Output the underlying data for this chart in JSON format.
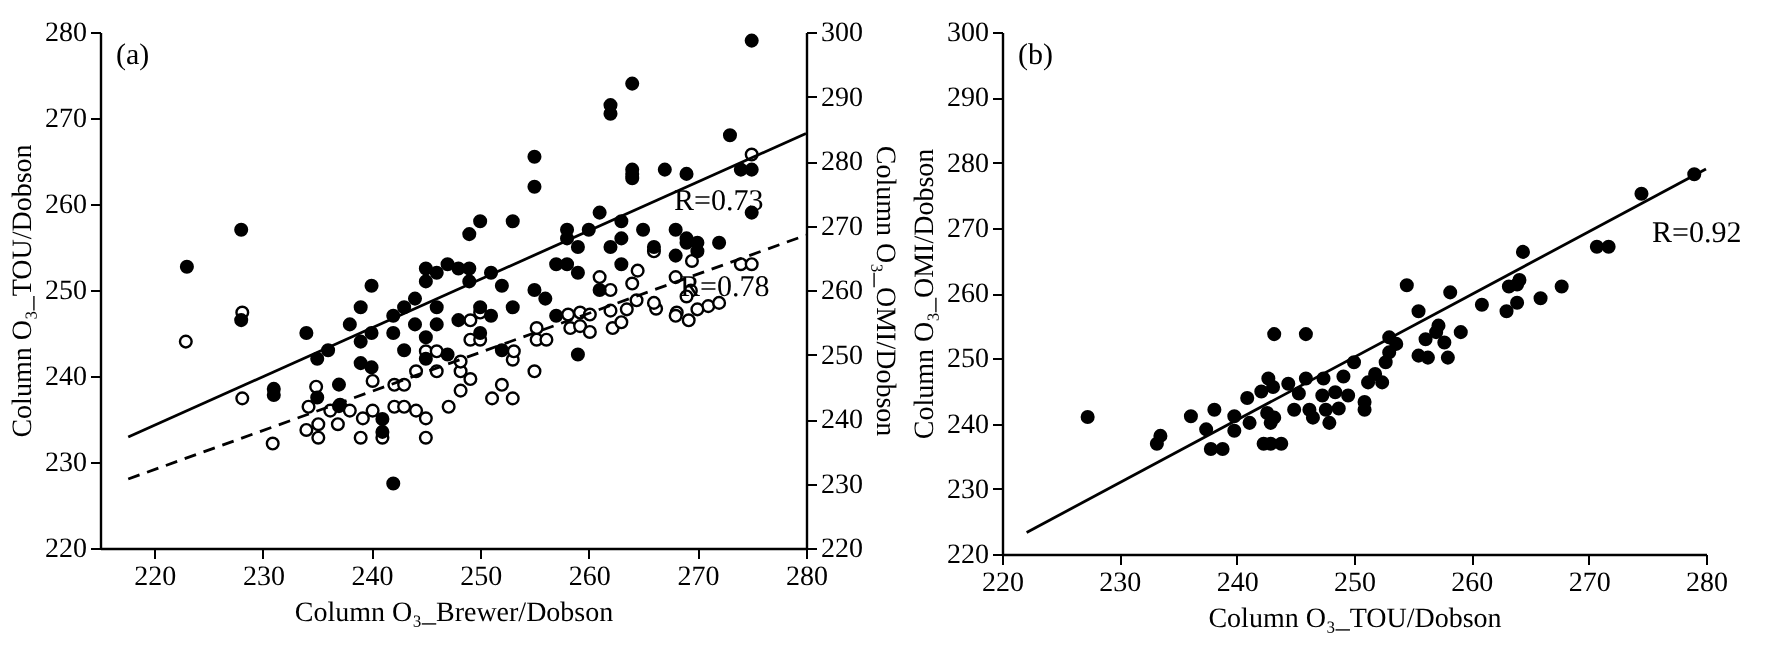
{
  "chart_data": [
    {
      "type": "scatter",
      "title": "(a)",
      "xlabel": "Column O₃_Brewer/Dobson",
      "ylabel": "Column O₃_TOU/Dobson",
      "y2label": "Column O₃_OMI/Dobson",
      "xlim": [
        215,
        280
      ],
      "xticks": [
        220,
        230,
        240,
        250,
        260,
        270,
        280
      ],
      "ylim": [
        220,
        280
      ],
      "yticks": [
        220,
        230,
        240,
        250,
        260,
        270,
        280
      ],
      "y2lim": [
        220,
        300
      ],
      "y2ticks": [
        220,
        230,
        240,
        250,
        260,
        270,
        280,
        290,
        300
      ],
      "marker": "circle",
      "series": [
        {
          "color": "#000000",
          "x": [
            223,
            228,
            228,
            231,
            231,
            234,
            235,
            235,
            236,
            237,
            237,
            238,
            239,
            239,
            239,
            240,
            240,
            240,
            241,
            241,
            242,
            242,
            242,
            243,
            243,
            244,
            244,
            245,
            245,
            245,
            245,
            246,
            246,
            247,
            248,
            248,
            249,
            249,
            249,
            250,
            250,
            251,
            252,
            252,
            253,
            253,
            255,
            255,
            255,
            256,
            257,
            258,
            258,
            259,
            259,
            259,
            260,
            261,
            261,
            262,
            262,
            263,
            263,
            264,
            264,
            264,
            265,
            266,
            267,
            268,
            268,
            269,
            269,
            269,
            270,
            272,
            273,
            274,
            275,
            275,
            275,
            270,
            262,
            263,
            258,
            257,
            251,
            250,
            247,
            246
          ],
          "values": [
            252.7,
            257,
            246.5,
            238.5,
            237.8,
            245,
            242,
            237.5,
            243,
            239,
            236.5,
            246,
            248,
            244,
            241.5,
            250.5,
            245,
            241,
            235,
            233.5,
            247,
            227.5,
            245,
            248,
            243,
            249,
            246,
            252.5,
            251,
            244.5,
            242,
            252,
            248,
            242.5,
            252.5,
            246.5,
            256.5,
            252.5,
            251,
            248,
            245,
            247,
            250.5,
            243,
            248,
            258,
            265.5,
            262,
            250,
            249,
            247,
            256,
            253,
            255,
            252,
            242.5,
            257,
            259,
            250,
            271.5,
            270.5,
            258,
            253,
            274,
            264,
            263,
            257,
            255,
            264,
            257,
            254,
            263.5,
            255.5,
            256,
            255.5,
            255.5,
            268,
            264,
            279,
            264,
            259,
            254.5,
            255,
            256,
            257,
            253,
            252,
            258,
            253,
            246
          ]
        },
        {
          "color": "#000000",
          "axis": "y2",
          "x": [
            222.9,
            228.1,
            228.1,
            230.9,
            234.9,
            234.2,
            234,
            235.1,
            235.1,
            236.2,
            236.9,
            237.1,
            238,
            239,
            239.2,
            240.1,
            240.1,
            241,
            242.1,
            242.1,
            243,
            243,
            244.1,
            245,
            245,
            244.1,
            245,
            246,
            246,
            247.1,
            248.2,
            248.2,
            248.2,
            249.1,
            249.1,
            250,
            249.1,
            250,
            251.1,
            252,
            253,
            253,
            253.1,
            255,
            255.2,
            255.2,
            256.1,
            258.1,
            258.3,
            259.2,
            259.2,
            260.1,
            260.1,
            262.2,
            262,
            264.4,
            266.2,
            268.1,
            269.2,
            269.4,
            263.5,
            264,
            264.5,
            266,
            268,
            269,
            269.5,
            271,
            272,
            274,
            275,
            268,
            270,
            262,
            263,
            261,
            266,
            264,
            275
          ],
          "values": [
            252,
            256.5,
            243.2,
            236.2,
            245,
            241.9,
            238.3,
            237.1,
            239.2,
            241.3,
            239.2,
            242.2,
            241.3,
            237.1,
            240.1,
            241.3,
            245.9,
            237.1,
            241.9,
            245.3,
            241.9,
            245.3,
            241.3,
            240.1,
            237.1,
            247.4,
            250.5,
            250.5,
            247.4,
            241.9,
            247.4,
            244.4,
            248.9,
            246.2,
            252.3,
            252.3,
            255.3,
            256.5,
            243.2,
            245.3,
            243.2,
            249.2,
            250.5,
            247.4,
            254.1,
            252.3,
            252.3,
            256.2,
            254.1,
            256.5,
            254.4,
            256.2,
            253.5,
            254.1,
            256.8,
            258.4,
            257.1,
            256.5,
            255.3,
            259.9,
            257,
            261,
            263,
            258,
            262,
            259,
            264.5,
            257.5,
            258,
            264,
            264,
            256,
            257,
            260,
            255,
            262,
            266,
            278,
            281
          ]
        },
        {
          "type": "line",
          "marker": "none",
          "color": "#000000",
          "x": [
            217.6,
            280
          ],
          "values": [
            232.9,
            268.2
          ]
        },
        {
          "type": "line",
          "marker": "none",
          "color": "#000000",
          "axis": "y2",
          "line_style": "dashed",
          "x": [
            217.6,
            280
          ],
          "values": [
            230.7,
            268.5
          ]
        }
      ],
      "annotations": [
        "R=0.73",
        "R=0.78"
      ]
    },
    {
      "type": "scatter",
      "title": "(b)",
      "xlabel": "Column O₃_TOU/Dobson",
      "ylabel": "Column O₃_OMI/Dobson",
      "xlim": [
        220,
        280
      ],
      "xticks": [
        220,
        230,
        240,
        250,
        260,
        270,
        280
      ],
      "ylim": [
        220,
        300
      ],
      "yticks": [
        220,
        230,
        240,
        250,
        260,
        270,
        280,
        290,
        300
      ],
      "marker": "circle",
      "series": [
        {
          "color": "#000000",
          "x": [
            227.3,
            233.2,
            233.5,
            236.1,
            237.4,
            238.1,
            237.8,
            238.8,
            239.8,
            239.8,
            240.9,
            241.1,
            242.1,
            242.3,
            242.7,
            242.6,
            242.9,
            243.2,
            243.2,
            243.1,
            242.9,
            243.8,
            244.4,
            244.9,
            245.3,
            245.9,
            245.9,
            246.2,
            246.5,
            247.4,
            247.6,
            247.9,
            247.3,
            248.4,
            248.7,
            249.1,
            250,
            249.5,
            250.9,
            250.9,
            251.2,
            251.8,
            252.4,
            252.7,
            253,
            253.6,
            253,
            254.5,
            255.5,
            255.5,
            256.1,
            256.3,
            257,
            257.2,
            257.7,
            258,
            258.2,
            259.1,
            260.9,
            263,
            263.2,
            263.9,
            264.1,
            264.4,
            263.9,
            265.9,
            267.7,
            270.7,
            271.7,
            274.5,
            279
          ],
          "values": [
            241,
            236.9,
            238.1,
            241.1,
            239.1,
            242.1,
            236.1,
            236.1,
            238.9,
            241.1,
            243.9,
            240.1,
            244.9,
            236.9,
            246.9,
            241.6,
            240.1,
            240.9,
            253.7,
            245.6,
            236.9,
            236.9,
            246.1,
            242.1,
            244.6,
            253.7,
            246.9,
            242.1,
            240.9,
            246.9,
            242.1,
            240.1,
            244.3,
            244.8,
            242.3,
            247.2,
            249.4,
            244.3,
            243.3,
            242.1,
            246.3,
            247.6,
            246.3,
            249.4,
            253.2,
            252.2,
            250.9,
            261.2,
            257.2,
            250.4,
            252.9,
            250.1,
            254,
            255,
            252.4,
            250.1,
            260.1,
            254,
            258.2,
            257.2,
            261,
            258.5,
            262,
            266.3,
            261.3,
            259.2,
            261,
            267.1,
            267.1,
            275.2,
            278.2
          ]
        },
        {
          "type": "line",
          "marker": "none",
          "color": "#000000",
          "x": [
            222.1,
            280
          ],
          "values": [
            223.3,
            279
          ]
        }
      ],
      "annotations": [
        "R=0.92"
      ]
    }
  ]
}
